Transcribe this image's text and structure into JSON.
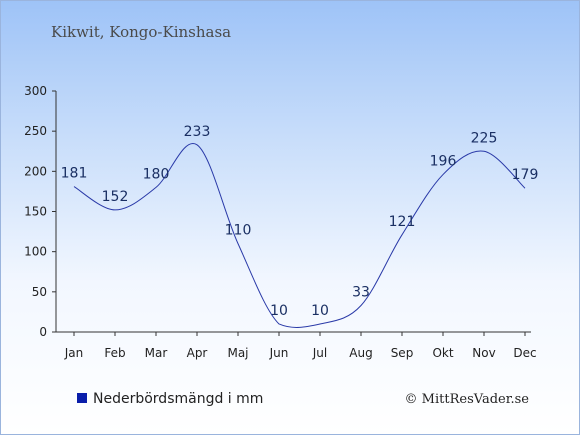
{
  "chart_data": {
    "type": "line",
    "title": "Kikwit, Kongo-Kinshasa",
    "categories": [
      "Jan",
      "Feb",
      "Mar",
      "Apr",
      "Maj",
      "Jun",
      "Jul",
      "Aug",
      "Sep",
      "Okt",
      "Nov",
      "Dec"
    ],
    "values": [
      181,
      152,
      180,
      233,
      110,
      10,
      10,
      33,
      121,
      196,
      225,
      179
    ],
    "yticks": [
      0,
      50,
      100,
      150,
      200,
      250,
      300
    ],
    "ylim": [
      0,
      300
    ],
    "line_color": "#2a3aa8",
    "legend": {
      "label": "Nederbördsmängd i mm",
      "color": "#0a1eaa",
      "placement": "bottom-left"
    },
    "grid": false
  },
  "footer": {
    "copyright": "© MittResVader.se"
  }
}
